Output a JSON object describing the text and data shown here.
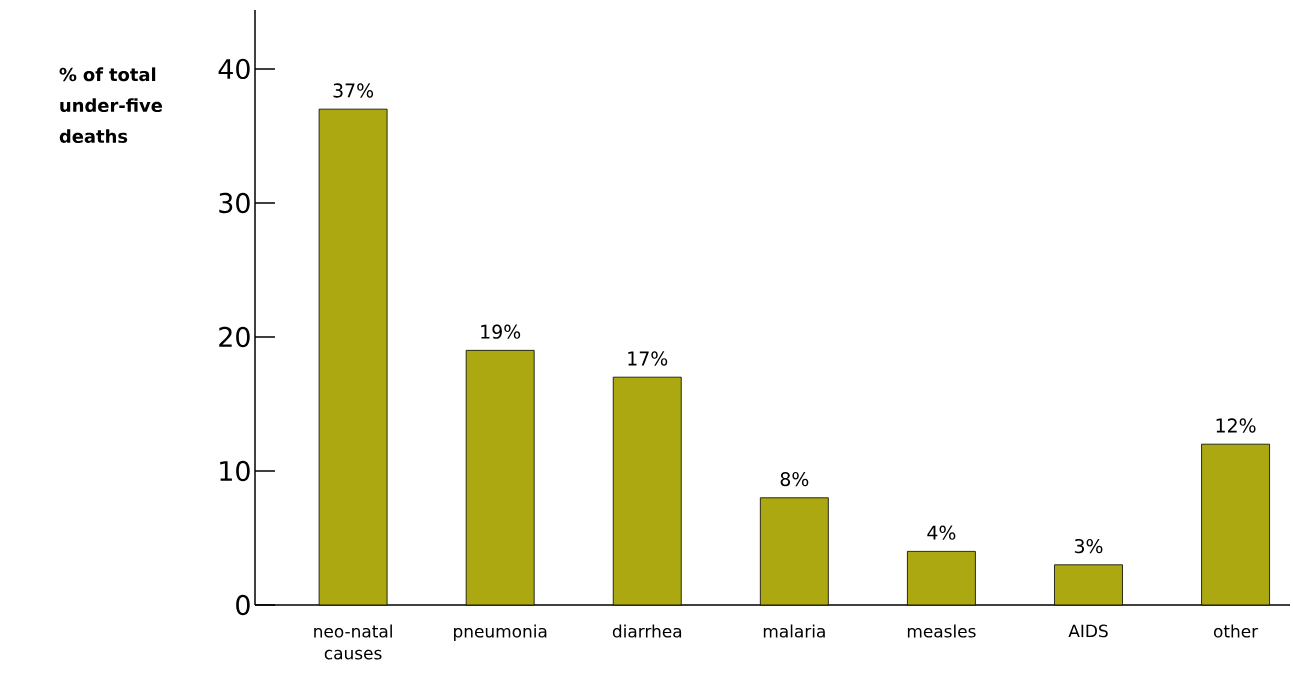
{
  "chart_data": {
    "type": "bar",
    "ylabel": "% of total under-five deaths",
    "categories": [
      "neo-natal causes",
      "pneumonia",
      "diarrhea",
      "malaria",
      "measles",
      "AIDS",
      "other"
    ],
    "values": [
      37,
      19,
      17,
      8,
      4,
      3,
      12
    ],
    "value_labels": [
      "37%",
      "19%",
      "17%",
      "8%",
      "4%",
      "3%",
      "12%"
    ],
    "color": "#aba811",
    "ylim": [
      0,
      44.4
    ],
    "yticks": [
      0,
      10,
      20,
      30,
      40
    ],
    "grid": false
  }
}
